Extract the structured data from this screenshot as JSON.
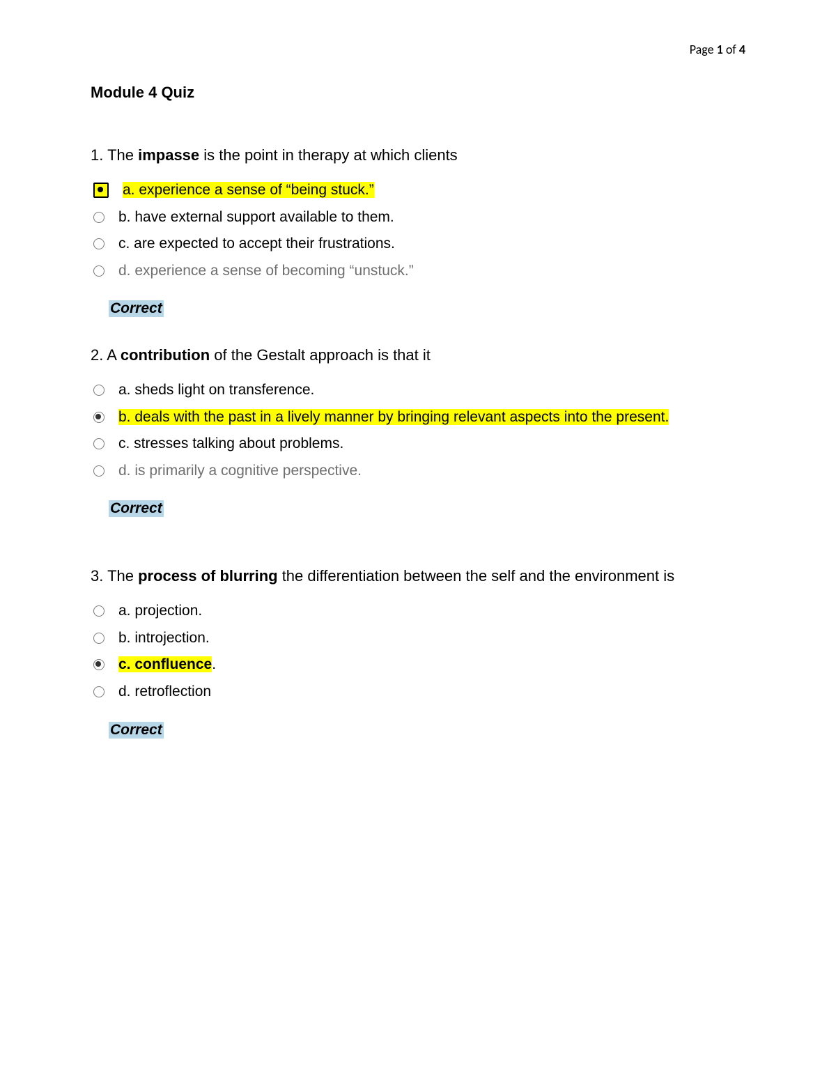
{
  "page_indicator": {
    "prefix": "Page ",
    "current": "1",
    "of": " of ",
    "total": "4"
  },
  "title": "Module 4 Quiz",
  "highlight_color": "#ffff00",
  "feedback_bg": "#b7d6e8",
  "grey_text": "#6f6f6f",
  "questions": [
    {
      "number": "1. ",
      "pre": "The ",
      "bold": "impasse",
      "post": " is the point in therapy at which clients",
      "feedback": "Correct",
      "options": [
        {
          "letter": "a. ",
          "text": "experience a sense of “being stuck.”",
          "selected": true,
          "highlighted": true,
          "radio_highlighted": true,
          "grey": false,
          "bold": false
        },
        {
          "letter": "b. ",
          "text": "have external support available to them.",
          "selected": false,
          "highlighted": false,
          "radio_highlighted": false,
          "grey": false,
          "bold": false
        },
        {
          "letter": "c. ",
          "text": "are expected to accept their frustrations.",
          "selected": false,
          "highlighted": false,
          "radio_highlighted": false,
          "grey": false,
          "bold": false
        },
        {
          "letter": "d. ",
          "text": "experience a sense of becoming “unstuck.”",
          "selected": false,
          "highlighted": false,
          "radio_highlighted": false,
          "grey": true,
          "bold": false
        }
      ]
    },
    {
      "number": "2. ",
      "pre": "A ",
      "bold": "contribution",
      "post": " of the Gestalt approach is that it",
      "feedback": "Correct",
      "options": [
        {
          "letter": "a. ",
          "text": "sheds light on transference.",
          "selected": false,
          "highlighted": false,
          "radio_highlighted": false,
          "grey": false,
          "bold": false
        },
        {
          "letter": "b. ",
          "text": "deals with the past in a lively manner by bringing relevant aspects into the present.",
          "selected": true,
          "highlighted": true,
          "radio_highlighted": false,
          "grey": false,
          "bold": false
        },
        {
          "letter": "c. ",
          "text": "stresses talking about problems.",
          "selected": false,
          "highlighted": false,
          "radio_highlighted": false,
          "grey": false,
          "bold": false
        },
        {
          "letter": "d. ",
          "text": "is primarily a cognitive perspective.",
          "selected": false,
          "highlighted": false,
          "radio_highlighted": false,
          "grey": true,
          "bold": false
        }
      ]
    },
    {
      "number": "3. ",
      "pre": "The ",
      "bold": "process of blurring",
      "post": " the differentiation between the self and the environment is",
      "feedback": "Correct",
      "options": [
        {
          "letter": "a. ",
          "text": "projection.",
          "selected": false,
          "highlighted": false,
          "radio_highlighted": false,
          "grey": false,
          "bold": false
        },
        {
          "letter": "b. ",
          "text": "introjection.",
          "selected": false,
          "highlighted": false,
          "radio_highlighted": false,
          "grey": false,
          "bold": false
        },
        {
          "letter": "c. ",
          "text": "confluence",
          "tail": ".",
          "selected": true,
          "highlighted": true,
          "radio_highlighted": false,
          "grey": false,
          "bold": true
        },
        {
          "letter": "d. ",
          "text": "retroflection",
          "selected": false,
          "highlighted": false,
          "radio_highlighted": false,
          "grey": false,
          "bold": false
        }
      ]
    }
  ]
}
